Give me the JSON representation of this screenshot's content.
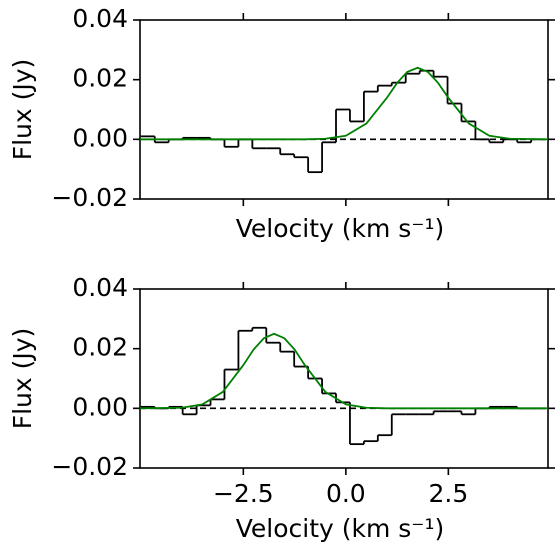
{
  "chart_data": [
    {
      "type": "histogram",
      "xlabel": "Velocity (km s⁻¹)",
      "ylabel": "Flux (Jy)",
      "xlim": [
        -5.02,
        4.93
      ],
      "ylim": [
        -0.02,
        0.04
      ],
      "xticks": [
        -2.5,
        0,
        2.5
      ],
      "xtick_labels": false,
      "yticks": [
        {
          "value": -0.02,
          "label": "−0.02"
        },
        {
          "value": 0,
          "label": "0.00"
        },
        0.02,
        0.04
      ],
      "zero_line": true,
      "color": "#000000",
      "bins": [
        -5.0,
        -4.66,
        -4.32,
        -3.98,
        -3.64,
        -3.3,
        -2.96,
        -2.62,
        -2.28,
        -1.94,
        -1.6,
        -1.26,
        -0.92,
        -0.58,
        -0.24,
        0.1,
        0.44,
        0.78,
        1.12,
        1.46,
        1.8,
        2.14,
        2.48,
        2.82,
        3.16,
        3.5,
        3.84,
        4.18,
        4.52,
        4.86
      ],
      "values": [
        0.001,
        -0.001,
        0.0,
        0.0005,
        0.0005,
        0.0,
        -0.0025,
        0.0,
        -0.003,
        -0.003,
        -0.005,
        -0.006,
        -0.011,
        -0.001,
        0.01,
        0.006,
        0.016,
        0.018,
        0.019,
        0.022,
        0.023,
        0.021,
        0.012,
        0.006,
        0.0,
        -0.001,
        0.0,
        -0.001,
        0.0
      ],
      "fit": {
        "color": "#008000",
        "x": [
          -5.02,
          -1,
          -0.5,
          0,
          0.5,
          1,
          1.25,
          1.5,
          1.75,
          2,
          2.25,
          2.5,
          3,
          3.5,
          4,
          4.93
        ],
        "values": [
          0,
          0,
          0.0002,
          0.0012,
          0.0053,
          0.0139,
          0.0189,
          0.0226,
          0.024,
          0.0226,
          0.0189,
          0.0139,
          0.0053,
          0.0012,
          0.0002,
          0
        ]
      }
    },
    {
      "type": "histogram",
      "xlabel": "Velocity (km s⁻¹)",
      "ylabel": "Flux (Jy)",
      "xlim": [
        -5.02,
        4.93
      ],
      "ylim": [
        -0.02,
        0.04
      ],
      "xticks": [
        {
          "value": -2.5,
          "label": "−2.5"
        },
        {
          "value": 0,
          "label": "0.0"
        },
        2.5
      ],
      "xtick_labels": true,
      "yticks": [
        {
          "value": -0.02,
          "label": "−0.02"
        },
        {
          "value": 0,
          "label": "0.00"
        },
        0.02,
        0.04
      ],
      "zero_line": true,
      "color": "#000000",
      "bins": [
        -5.0,
        -4.66,
        -4.32,
        -3.98,
        -3.64,
        -3.3,
        -2.96,
        -2.62,
        -2.28,
        -1.94,
        -1.6,
        -1.26,
        -0.92,
        -0.58,
        -0.24,
        0.1,
        0.44,
        0.78,
        1.12,
        1.46,
        1.8,
        2.14,
        2.48,
        2.82,
        3.16,
        3.5,
        3.84,
        4.18,
        4.52,
        4.86
      ],
      "values": [
        0.0005,
        0.0,
        0.0005,
        -0.002,
        0.001,
        0.003,
        0.013,
        0.026,
        0.027,
        0.022,
        0.019,
        0.014,
        0.01,
        0.005,
        0.002,
        -0.012,
        -0.011,
        -0.009,
        -0.002,
        -0.002,
        -0.002,
        -0.001,
        -0.001,
        -0.002,
        0.0,
        0.0005,
        0.0005,
        0.0,
        0.0
      ],
      "fit": {
        "color": "#008000",
        "x": [
          -5.02,
          -4,
          -3.5,
          -3,
          -2.5,
          -2.25,
          -2,
          -1.75,
          -1.5,
          -1.25,
          -1,
          -0.5,
          0,
          0.5,
          1,
          4.93
        ],
        "values": [
          0,
          0.0002,
          0.0013,
          0.0055,
          0.0145,
          0.0197,
          0.0235,
          0.025,
          0.0235,
          0.0197,
          0.0145,
          0.0055,
          0.0013,
          0.0002,
          0,
          0
        ]
      }
    }
  ]
}
